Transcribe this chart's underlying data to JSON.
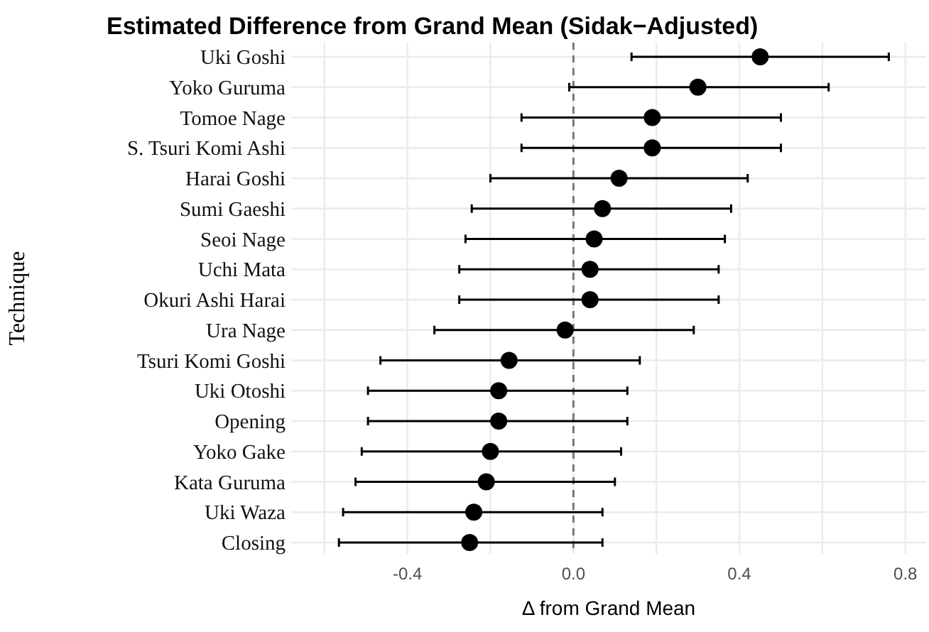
{
  "chart_data": {
    "type": "scatter",
    "orientation": "horizontal",
    "title": "Estimated Difference from Grand Mean (Sidak−Adjusted)",
    "xlabel": "Δ from Grand Mean",
    "ylabel": "Technique",
    "categories": [
      "Uki Goshi",
      "Yoko Guruma",
      "Tomoe Nage",
      "S. Tsuri Komi Ashi",
      "Harai Goshi",
      "Sumi Gaeshi",
      "Seoi Nage",
      "Uchi Mata",
      "Okuri Ashi Harai",
      "Ura Nage",
      "Tsuri Komi Goshi",
      "Uki Otoshi",
      "Opening",
      "Yoko Gake",
      "Kata Guruma",
      "Uki Waza",
      "Closing"
    ],
    "values": [
      0.45,
      0.3,
      0.19,
      0.19,
      0.11,
      0.07,
      0.05,
      0.04,
      0.04,
      -0.02,
      -0.155,
      -0.18,
      -0.18,
      -0.2,
      -0.21,
      -0.24,
      -0.25
    ],
    "errors": [
      [
        0.14,
        0.76
      ],
      [
        -0.01,
        0.615
      ],
      [
        -0.125,
        0.5
      ],
      [
        -0.125,
        0.5
      ],
      [
        -0.2,
        0.42
      ],
      [
        -0.245,
        0.38
      ],
      [
        -0.26,
        0.365
      ],
      [
        -0.275,
        0.35
      ],
      [
        -0.275,
        0.35
      ],
      [
        -0.335,
        0.29
      ],
      [
        -0.465,
        0.16
      ],
      [
        -0.495,
        0.13
      ],
      [
        -0.495,
        0.13
      ],
      [
        -0.51,
        0.115
      ],
      [
        -0.525,
        0.1
      ],
      [
        -0.555,
        0.07
      ],
      [
        -0.565,
        0.07
      ]
    ],
    "color": "#000000",
    "marker": "circle",
    "xlim": [
      -0.68,
      0.85
    ],
    "xticks": [
      {
        "value": -0.6,
        "label": null
      },
      -0.4,
      {
        "value": -0.2,
        "label": null
      },
      {
        "value": 0,
        "label": "0.0"
      },
      {
        "value": 0.2,
        "label": null
      },
      0.4,
      {
        "value": 0.6,
        "label": null
      },
      0.8
    ],
    "grid": true,
    "ref_lines": [
      {
        "axis": "x",
        "value": 0,
        "label": null,
        "color": "#777777",
        "line_style": "dashed"
      }
    ]
  }
}
